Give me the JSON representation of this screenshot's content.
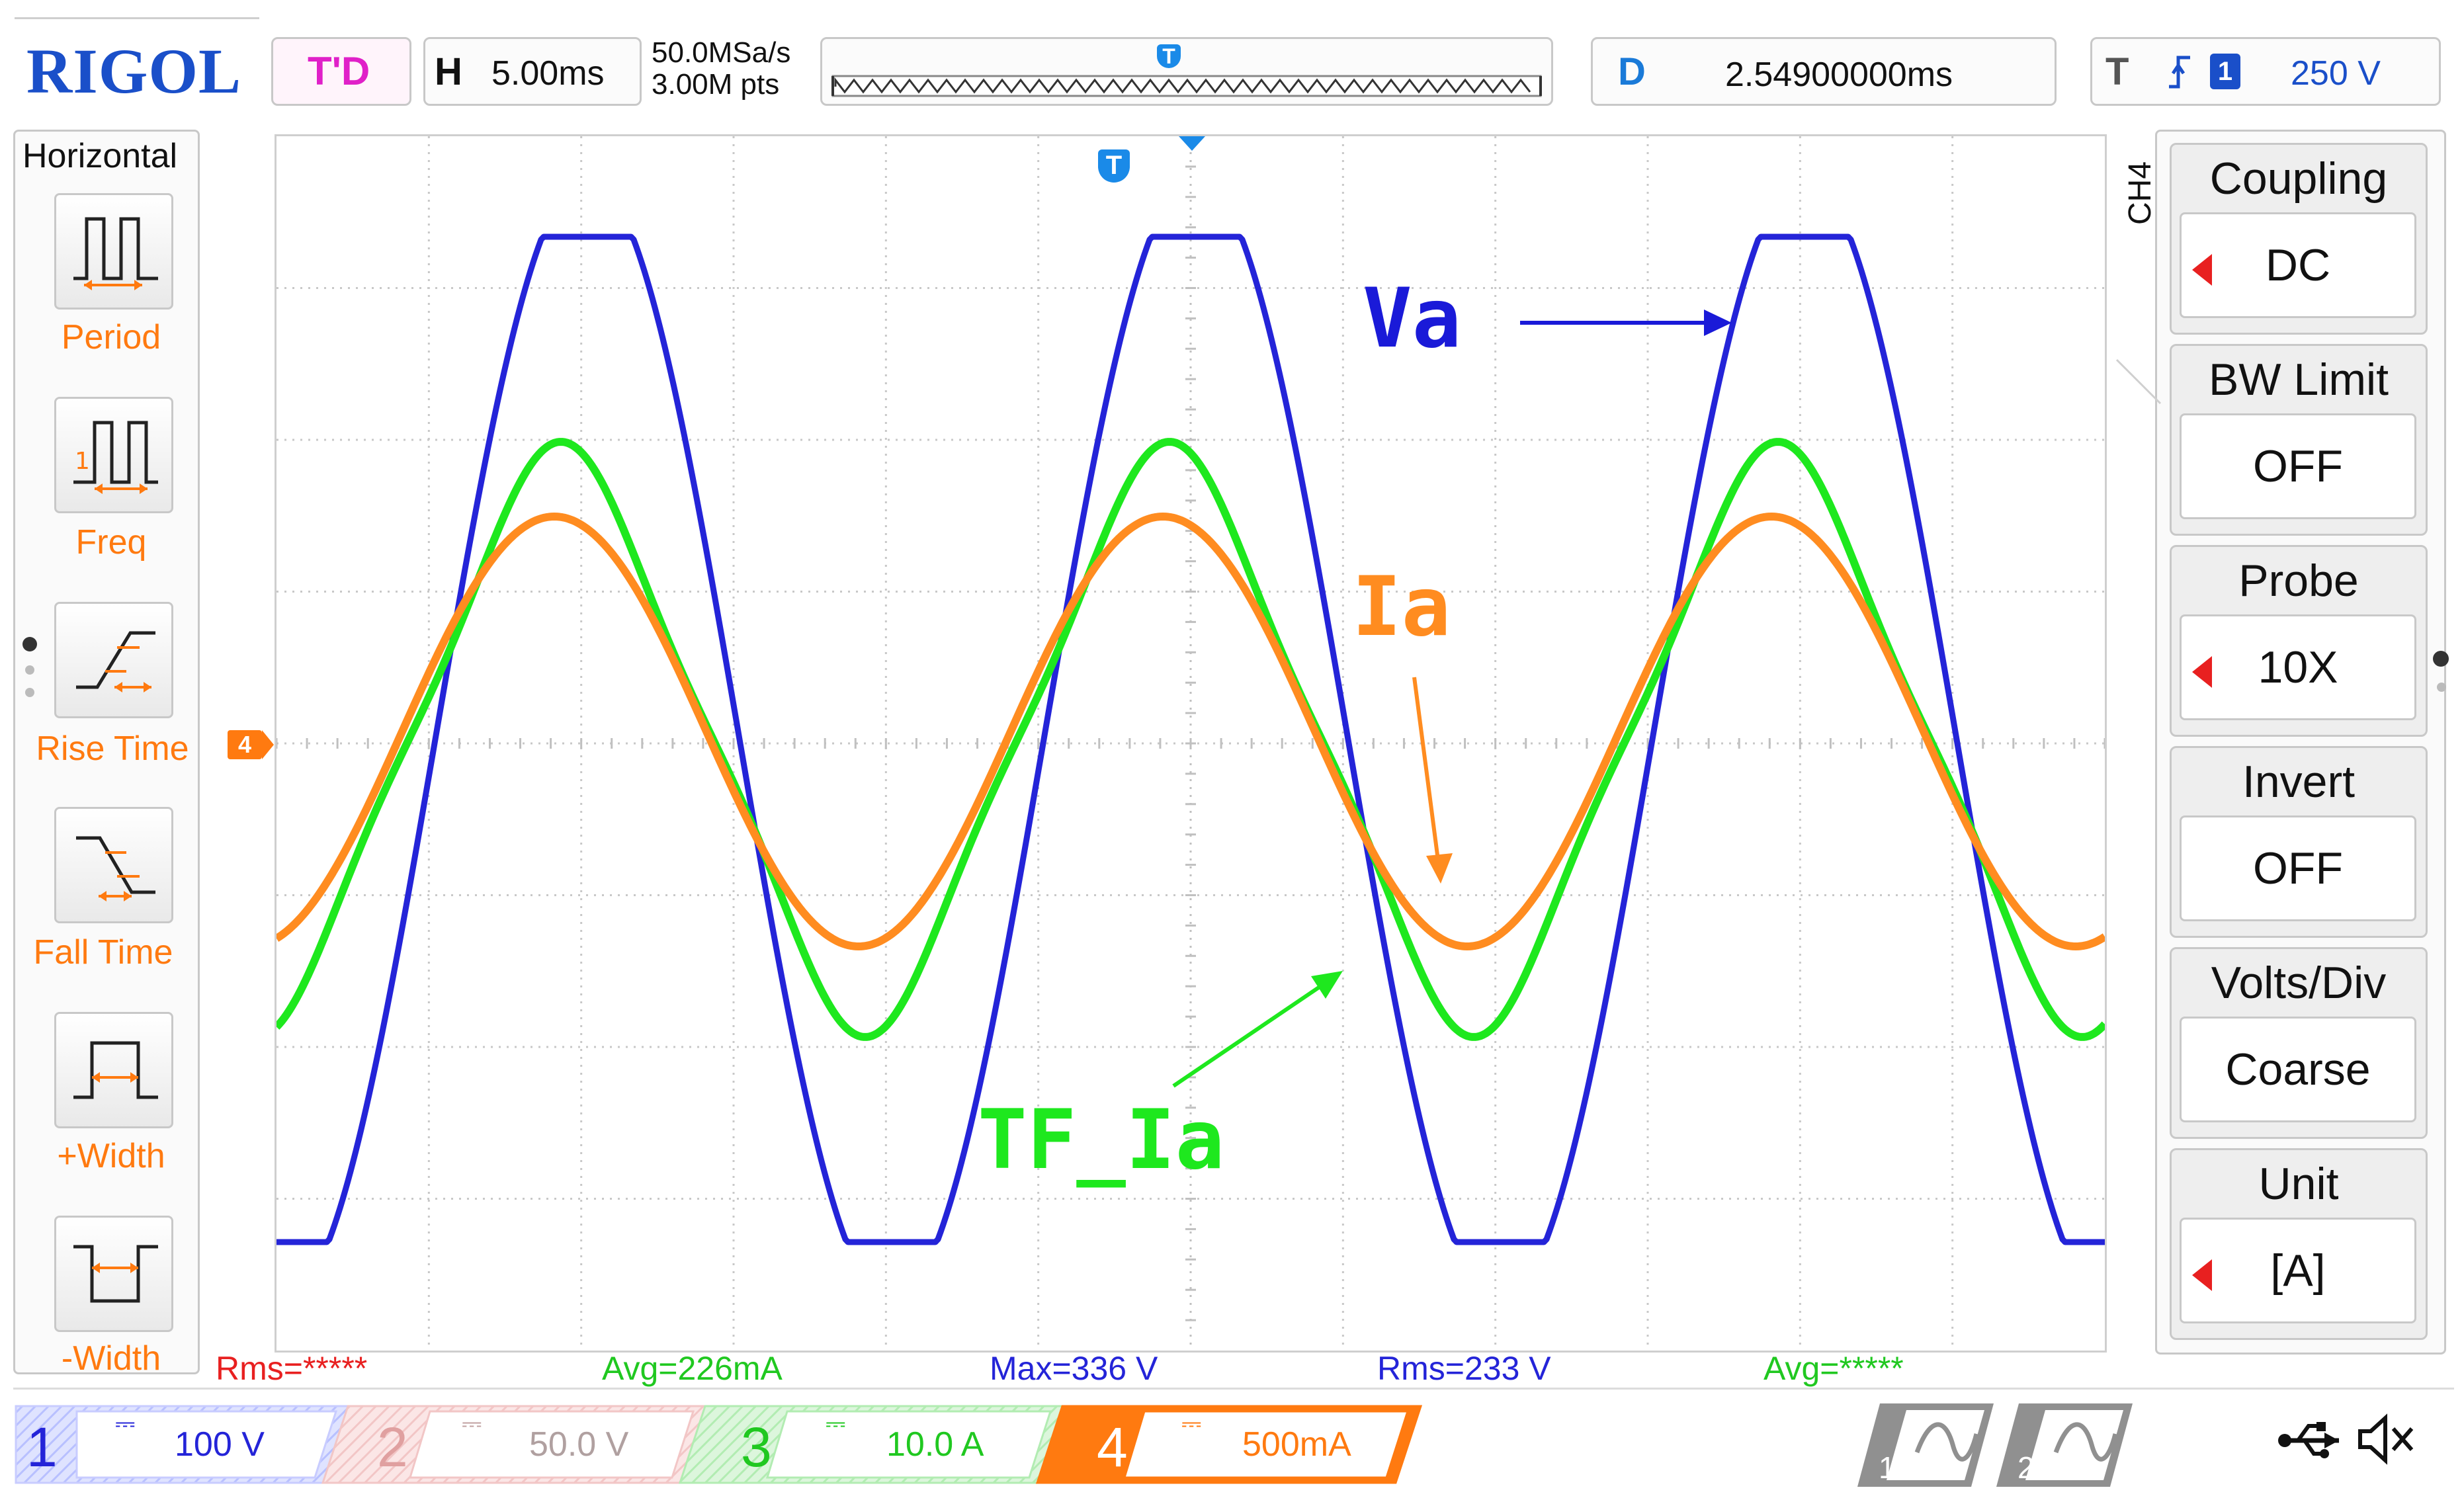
{
  "header": {
    "brand": "RIGOL",
    "run_status": "T'D",
    "timebase_label": "H",
    "timebase_value": "5.00ms",
    "sample_rate": "50.0MSa/s",
    "memory_depth": "3.00M pts",
    "trigger_marker": "T",
    "delay_label": "D",
    "delay_value": "2.54900000ms",
    "trigger_label": "T",
    "trigger_source": "1",
    "trigger_level": "250 V"
  },
  "left_menu": {
    "title": "Horizontal",
    "items": [
      {
        "label": "Period",
        "icon": "period-icon"
      },
      {
        "label": "Freq",
        "icon": "frequency-icon"
      },
      {
        "label": "Rise Time",
        "icon": "rise-time-icon"
      },
      {
        "label": "Fall Time",
        "icon": "fall-time-icon"
      },
      {
        "label": "+Width",
        "icon": "positive-width-icon"
      },
      {
        "label": "-Width",
        "icon": "negative-width-icon"
      }
    ]
  },
  "right_menu": {
    "channel": "CH4",
    "items": [
      {
        "title": "Coupling",
        "value": "DC",
        "arrow": true
      },
      {
        "title": "BW Limit",
        "value": "OFF",
        "arrow": false
      },
      {
        "title": "Probe",
        "value": "10X",
        "arrow": true
      },
      {
        "title": "Invert",
        "value": "OFF",
        "arrow": false
      },
      {
        "title": "Volts/Div",
        "value": "Coarse",
        "arrow": false
      },
      {
        "title": "Unit",
        "value": "[A]",
        "arrow": true
      }
    ]
  },
  "display": {
    "ch4_ground_marker": "4",
    "trigger_position_marker": "T",
    "annotations": {
      "va": "Va",
      "ia": "Ia",
      "tf_ia": "TF_Ia"
    },
    "waveform_colors": {
      "va": "#2424d8",
      "tf_ia": "#1ee81e",
      "ia": "#ff8c20"
    }
  },
  "measurements": [
    {
      "text": "Rms=*****",
      "color": "#e82020"
    },
    {
      "text": "Avg=226mA",
      "color": "#20c820"
    },
    {
      "text": "Max=336 V",
      "color": "#2424d8"
    },
    {
      "text": "Rms=233 V",
      "color": "#2424d8"
    },
    {
      "text": "Avg=*****",
      "color": "#20c820"
    }
  ],
  "channels": [
    {
      "number": "1",
      "scale": "100 V",
      "color": "#2424d8"
    },
    {
      "number": "2",
      "scale": "50.0 V",
      "color": "#e8a0a0"
    },
    {
      "number": "3",
      "scale": "10.0 A",
      "color": "#20c820"
    },
    {
      "number": "4",
      "scale": "500mA",
      "color": "#ff7a10"
    }
  ],
  "math_channels": [
    {
      "number": "1",
      "icon": "math-wave-icon"
    },
    {
      "number": "2",
      "icon": "math-wave-icon"
    }
  ],
  "status_icons": [
    "usb-icon",
    "sound-muted-icon"
  ]
}
